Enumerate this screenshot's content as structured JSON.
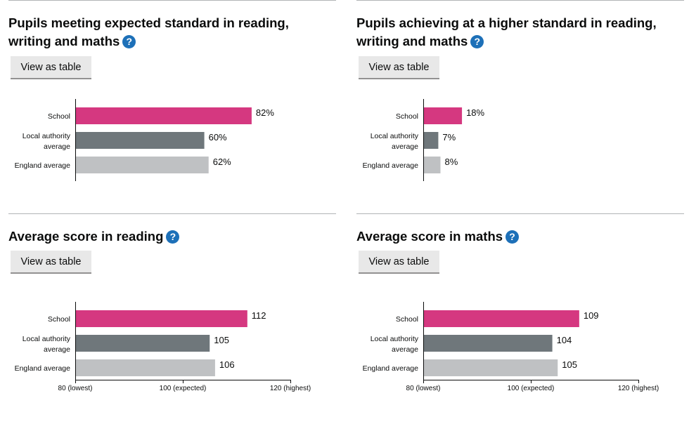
{
  "help_icon": "?",
  "view_button_label": "View as table",
  "colors": {
    "school": "#d53880",
    "local_authority": "#6f777b",
    "england": "#bfc1c3",
    "help_icon": "#1d70b8"
  },
  "chart_data": [
    {
      "type": "bar",
      "title": "Pupils meeting expected standard in reading, writing and maths",
      "categories": [
        "School",
        "Local authority average",
        "England average"
      ],
      "values": [
        82,
        60,
        62
      ],
      "value_labels": [
        "82%",
        "60%",
        "62%"
      ],
      "xlim": [
        0,
        100
      ],
      "ticks": []
    },
    {
      "type": "bar",
      "title": "Pupils achieving at a higher standard in reading, writing and maths",
      "categories": [
        "School",
        "Local authority average",
        "England average"
      ],
      "values": [
        18,
        7,
        8
      ],
      "value_labels": [
        "18%",
        "7%",
        "8%"
      ],
      "xlim": [
        0,
        100
      ],
      "ticks": []
    },
    {
      "type": "bar",
      "title": "Average score in reading",
      "categories": [
        "School",
        "Local authority average",
        "England average"
      ],
      "values": [
        112,
        105,
        106
      ],
      "value_labels": [
        "112",
        "105",
        "106"
      ],
      "xlim": [
        80,
        120
      ],
      "ticks": [
        {
          "value": 80,
          "label": "80 (lowest)"
        },
        {
          "value": 100,
          "label": "100 (expected)"
        },
        {
          "value": 120,
          "label": "120 (highest)"
        }
      ]
    },
    {
      "type": "bar",
      "title": "Average score in maths",
      "categories": [
        "School",
        "Local authority average",
        "England average"
      ],
      "values": [
        109,
        104,
        105
      ],
      "value_labels": [
        "109",
        "104",
        "105"
      ],
      "xlim": [
        80,
        120
      ],
      "ticks": [
        {
          "value": 80,
          "label": "80 (lowest)"
        },
        {
          "value": 100,
          "label": "100 (expected)"
        },
        {
          "value": 120,
          "label": "120 (highest)"
        }
      ]
    }
  ]
}
